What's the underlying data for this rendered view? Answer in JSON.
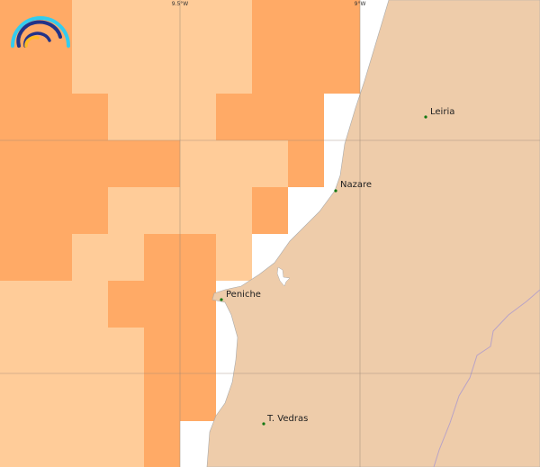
{
  "colors": {
    "high": "#FFAA66",
    "low": "#FFCC99",
    "land": "#EECCAA",
    "sea": "#FFFFFF",
    "city": "#117711",
    "grid": "#999988"
  },
  "grid_labels": [
    "9.5°W",
    "9°W"
  ],
  "cells": [
    [
      "h",
      "h",
      "l",
      "l",
      "l",
      "l",
      "l",
      "h",
      "h",
      "h"
    ],
    [
      "h",
      "h",
      "l",
      "l",
      "l",
      "l",
      "l",
      "h",
      "h",
      "h"
    ],
    [
      "h",
      "h",
      "h",
      "l",
      "l",
      "l",
      "h",
      "h",
      "h",
      ""
    ],
    [
      "h",
      "h",
      "h",
      "h",
      "h",
      "l",
      "l",
      "l",
      "h",
      ""
    ],
    [
      "h",
      "h",
      "h",
      "l",
      "l",
      "l",
      "l",
      "h",
      ""
    ],
    [
      "h",
      "h",
      "l",
      "l",
      "h",
      "h",
      "l",
      ""
    ],
    [
      "l",
      "l",
      "l",
      "h",
      "h",
      "h"
    ],
    [
      "l",
      "l",
      "l",
      "l",
      "h",
      "h"
    ],
    [
      "l",
      "l",
      "l",
      "l",
      "h",
      "h"
    ],
    [
      "l",
      "l",
      "l",
      "l",
      "h"
    ]
  ],
  "cities": [
    {
      "name": "Leiria",
      "icon": "city-dot-icon"
    },
    {
      "name": "Nazare",
      "icon": "city-dot-icon"
    },
    {
      "name": "Peniche",
      "icon": "city-dot-icon"
    },
    {
      "name": "T. Vedras",
      "icon": "city-dot-icon"
    }
  ],
  "logo": {
    "icon": "rainbow-logo-icon"
  }
}
